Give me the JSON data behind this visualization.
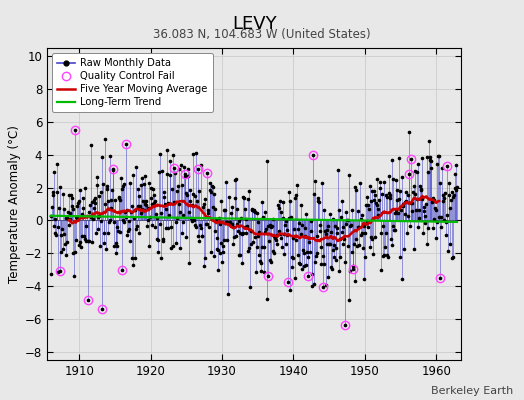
{
  "title": "LEVY",
  "subtitle": "36.083 N, 104.683 W (United States)",
  "ylabel": "Temperature Anomaly (°C)",
  "attribution": "Berkeley Earth",
  "xlim": [
    1905.5,
    1963.5
  ],
  "ylim": [
    -8.5,
    10.5
  ],
  "yticks": [
    -8,
    -6,
    -4,
    -2,
    0,
    2,
    4,
    6,
    8,
    10
  ],
  "xticks": [
    1910,
    1920,
    1930,
    1940,
    1950,
    1960
  ],
  "bg_color": "#e8e8e8",
  "line_color": "#4444cc",
  "ma_color": "#cc0000",
  "trend_color": "#00bb00",
  "qc_color": "#ff44ff",
  "seed": 17
}
